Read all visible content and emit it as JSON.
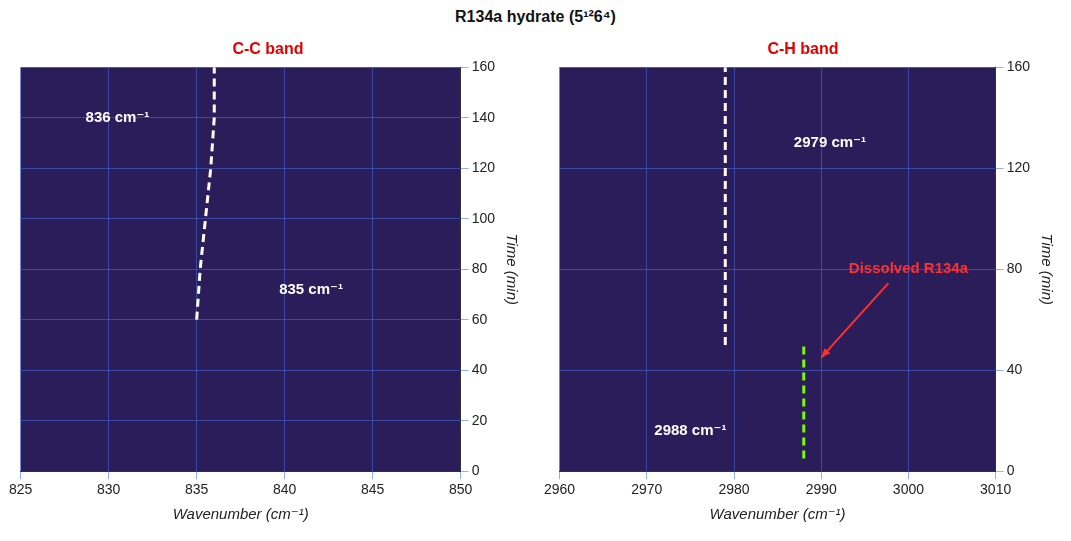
{
  "title": "R134a hydrate (5¹²6⁴)",
  "chart_data": [
    {
      "type": "line",
      "title": "C-C band",
      "x_label": "Wavenumber (cm⁻¹)",
      "y_label": "Time (min)",
      "xlim": [
        825,
        850
      ],
      "xticks": [
        825,
        830,
        835,
        840,
        845,
        850
      ],
      "ylim": [
        0,
        160
      ],
      "yticks": [
        0,
        20,
        40,
        60,
        80,
        100,
        120,
        140,
        160
      ],
      "grid": true,
      "series": [
        {
          "color": "#ffffff",
          "line_style": "dashed",
          "x": [
            835,
            835.2,
            835.5,
            835.8,
            836,
            836
          ],
          "values": [
            60,
            80,
            100,
            120,
            140,
            160
          ]
        }
      ],
      "annotations": [
        {
          "text": "836 cm⁻¹",
          "x": 830.5,
          "y": 140,
          "color": "#ffffff"
        },
        {
          "text": "835 cm⁻¹",
          "x": 841.5,
          "y": 72,
          "color": "#ffffff"
        }
      ]
    },
    {
      "type": "line",
      "title": "C-H band",
      "x_label": "Wavenumber (cm⁻¹)",
      "y_label": "Time (min)",
      "xlim": [
        2960,
        3010
      ],
      "xticks": [
        2960,
        2970,
        2980,
        2990,
        3000,
        3010
      ],
      "ylim": [
        0,
        160
      ],
      "yticks": [
        0,
        40,
        80,
        120,
        160
      ],
      "grid": true,
      "series": [
        {
          "color": "#ffffff",
          "line_style": "dashed",
          "x": [
            2979,
            2979,
            2979,
            2979,
            2979,
            2979
          ],
          "values": [
            50,
            70,
            90,
            110,
            135,
            160
          ]
        },
        {
          "color": "#7CFC00",
          "line_style": "dashed",
          "x": [
            2988,
            2988,
            2988,
            2988
          ],
          "values": [
            5,
            20,
            35,
            50
          ]
        }
      ],
      "annotations": [
        {
          "text": "2979 cm⁻¹",
          "x": 2991,
          "y": 130,
          "color": "#ffffff"
        },
        {
          "text": "2988 cm⁻¹",
          "x": 2975,
          "y": 16,
          "color": "#ffffff"
        },
        {
          "text": "Dissolved R134a",
          "x": 3000,
          "y": 80,
          "color": "#ff3030",
          "arrow_to": [
            2990,
            45
          ]
        }
      ]
    }
  ]
}
